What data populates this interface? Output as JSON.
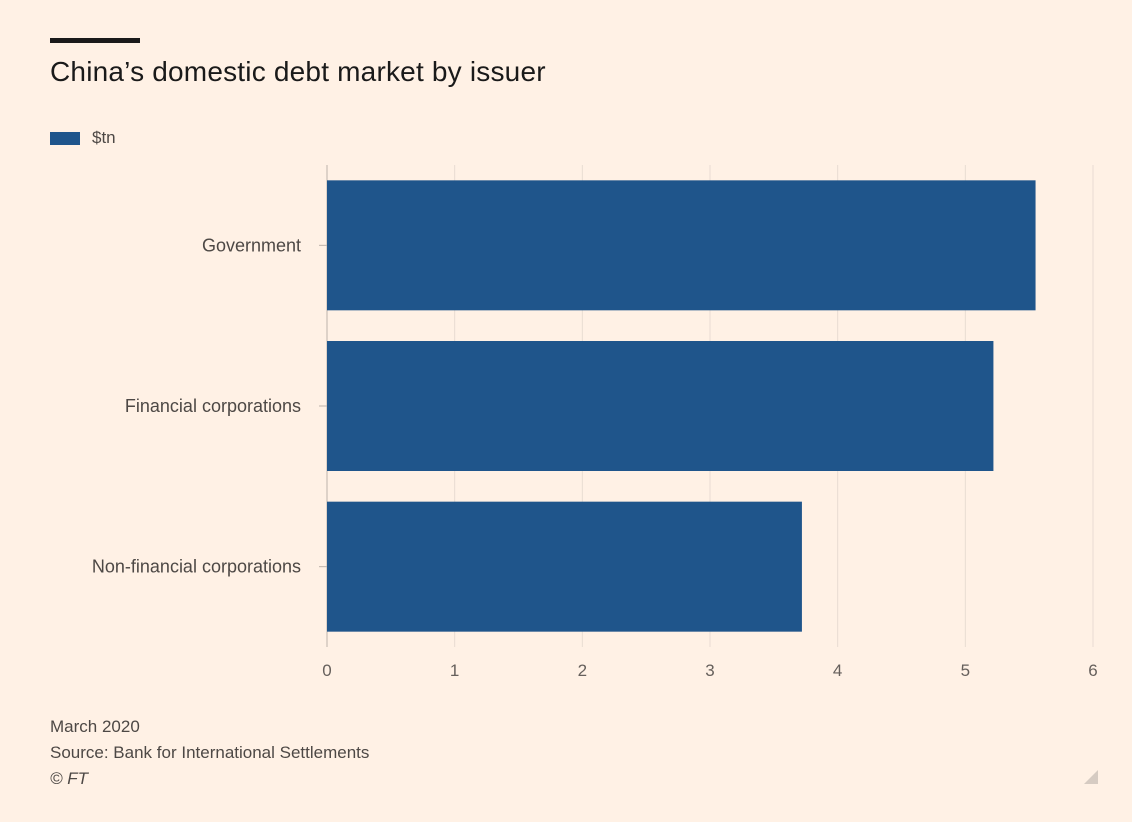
{
  "title": "China’s domestic debt market by issuer",
  "legend": {
    "label": "$tn"
  },
  "colors": {
    "bar": "#1f558b",
    "grid": "#e8dcd2",
    "axis_text": "#66605c",
    "category_text": "#4d4845",
    "background": "#fff1e5"
  },
  "chart_data": {
    "type": "bar",
    "orientation": "horizontal",
    "title": "China’s domestic debt market by issuer",
    "categories": [
      "Government",
      "Financial corporations",
      "Non-financial corporations"
    ],
    "series": [
      {
        "name": "$tn",
        "values": [
          5.55,
          5.22,
          3.72
        ]
      }
    ],
    "xlim": [
      0,
      6
    ],
    "xticks": [
      0,
      1,
      2,
      3,
      4,
      5,
      6
    ],
    "xlabel": "",
    "ylabel": "",
    "grid": true,
    "legend_position": "top-left"
  },
  "footer": {
    "date": "March 2020",
    "source": "Source: Bank for International Settlements",
    "copyright": "© FT"
  }
}
